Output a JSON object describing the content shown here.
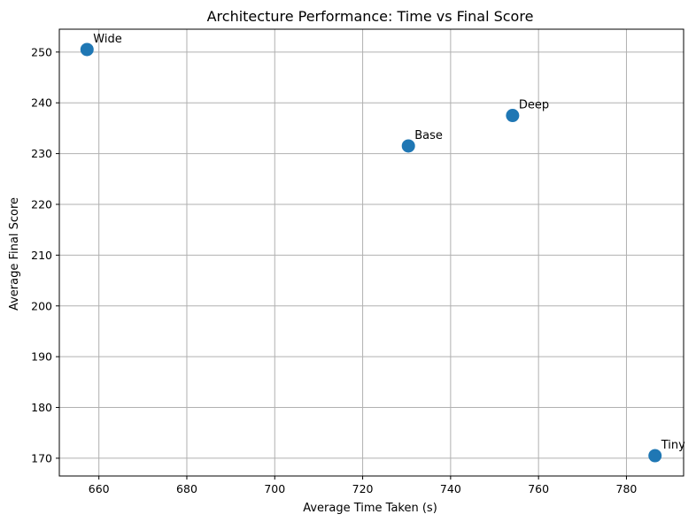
{
  "chart_data": {
    "type": "scatter",
    "title": "Architecture Performance: Time vs Final Score",
    "xlabel": "Average Time Taken (s)",
    "ylabel": "Average Final Score",
    "xlim": [
      651,
      793
    ],
    "ylim": [
      166.5,
      254.5
    ],
    "xticks": [
      660,
      680,
      700,
      720,
      740,
      760,
      780
    ],
    "yticks": [
      170,
      180,
      190,
      200,
      210,
      220,
      230,
      240,
      250
    ],
    "grid": true,
    "marker_color": "#1f77b4",
    "points": [
      {
        "label": "Wide",
        "x": 657.3,
        "y": 250.5
      },
      {
        "label": "Base",
        "x": 730.4,
        "y": 231.5
      },
      {
        "label": "Deep",
        "x": 754.1,
        "y": 237.5
      },
      {
        "label": "Tiny",
        "x": 786.5,
        "y": 170.5
      }
    ]
  }
}
